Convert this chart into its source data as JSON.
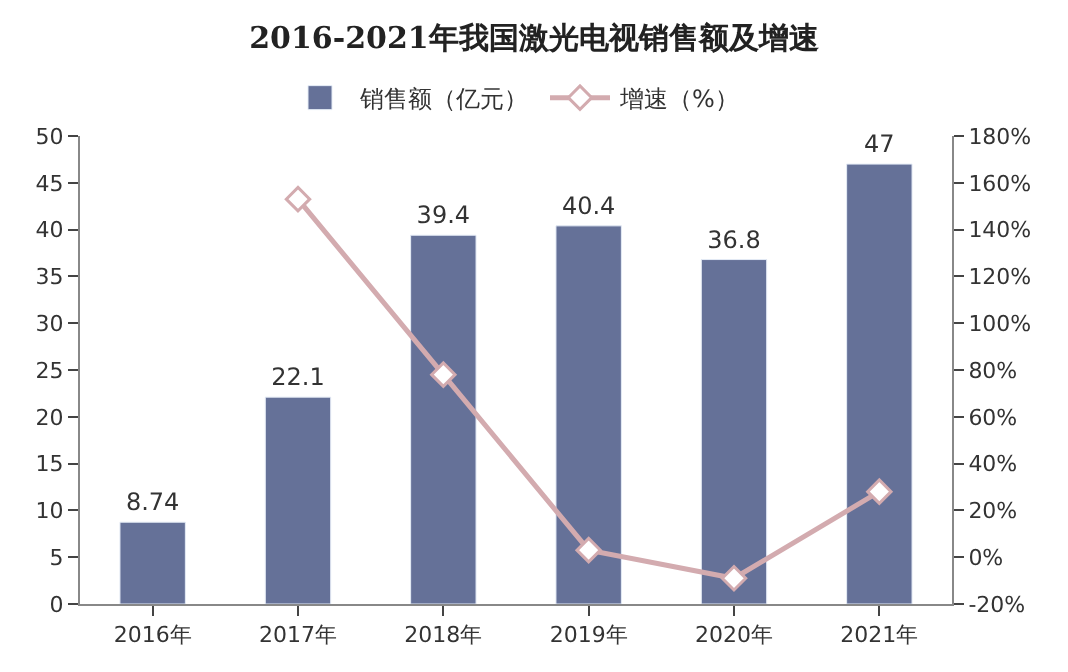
{
  "chart_data": {
    "type": "bar",
    "title": "2016-2021年我国激光电视销售额及增速",
    "categories": [
      "2016年",
      "2017年",
      "2018年",
      "2019年",
      "2020年",
      "2021年"
    ],
    "series": [
      {
        "name": "销售额（亿元）",
        "color": "#657198",
        "values": [
          8.74,
          22.1,
          39.4,
          40.4,
          36.8,
          47
        ],
        "data_labels": true
      },
      {
        "name": "增速（%）",
        "type": "line",
        "axis": "y2",
        "color": "#d3abaf",
        "marker": "diamond",
        "values": [
          null,
          153,
          78,
          3,
          -9,
          28
        ]
      }
    ],
    "ylim": [
      0,
      50
    ],
    "yticks": [
      0,
      5,
      10,
      15,
      20,
      25,
      30,
      35,
      40,
      45,
      50
    ],
    "y2lim": [
      -20,
      180
    ],
    "y2ticks": [
      {
        "value": -20,
        "label": "-20%"
      },
      {
        "value": 0,
        "label": "0%"
      },
      {
        "value": 20,
        "label": "20%"
      },
      {
        "value": 40,
        "label": "40%"
      },
      {
        "value": 60,
        "label": "60%"
      },
      {
        "value": 80,
        "label": "80%"
      },
      {
        "value": 100,
        "label": "100%"
      },
      {
        "value": 120,
        "label": "120%"
      },
      {
        "value": 140,
        "label": "140%"
      },
      {
        "value": 160,
        "label": "160%"
      },
      {
        "value": 180,
        "label": "180%"
      }
    ],
    "legend": "top"
  }
}
